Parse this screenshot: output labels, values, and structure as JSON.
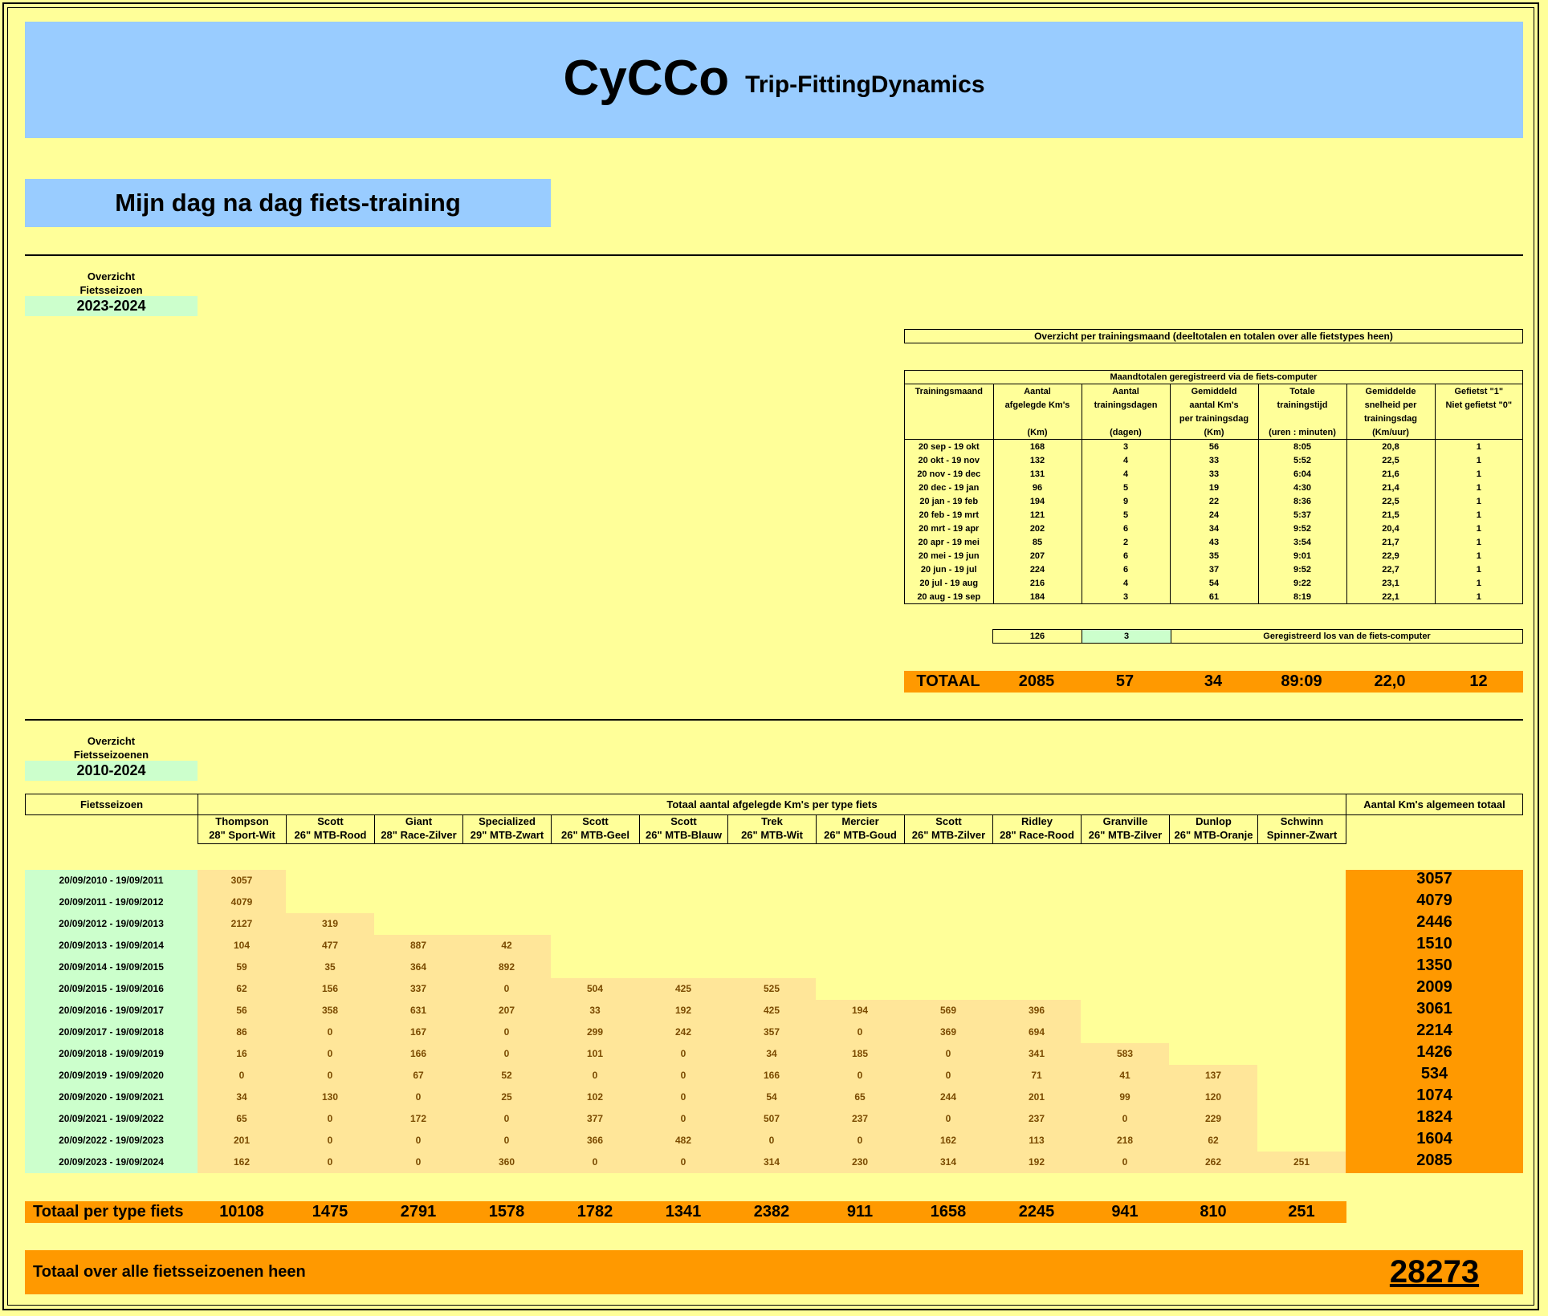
{
  "header": {
    "app": "CyCCo",
    "subtitle": "Trip-FittingDynamics"
  },
  "page_title": "Mijn dag na dag fiets-training",
  "season_overview": {
    "label1": "Overzicht",
    "label2": "Fietsseizoen",
    "value": "2023-2024"
  },
  "monthly": {
    "section_title": "Overzicht per trainingsmaand (deeltotalen en totalen over alle fietstypes heen)",
    "table_title": "Maandtotalen geregistreerd via de fiets-computer",
    "columns": [
      {
        "l1": "Trainingsmaand",
        "l2": "",
        "l3": "",
        "l4": ""
      },
      {
        "l1": "Aantal",
        "l2": "afgelegde  Km's",
        "l3": "",
        "l4": "(Km)"
      },
      {
        "l1": "Aantal",
        "l2": "trainingsdagen",
        "l3": "",
        "l4": "(dagen)"
      },
      {
        "l1": "Gemiddeld",
        "l2": "aantal Km's",
        "l3": "per trainingsdag",
        "l4": "(Km)"
      },
      {
        "l1": "Totale",
        "l2": "trainingstijd",
        "l3": "",
        "l4": "(uren : minuten)"
      },
      {
        "l1": "Gemiddelde",
        "l2": "snelheid per",
        "l3": "trainingsdag",
        "l4": "(Km/uur)"
      },
      {
        "l1": "Gefietst \"1\"",
        "l2": "Niet gefietst \"0\"",
        "l3": "",
        "l4": ""
      }
    ],
    "rows": [
      [
        "20 sep - 19 okt",
        "168",
        "3",
        "56",
        "8:05",
        "20,8",
        "1"
      ],
      [
        "20 okt - 19 nov",
        "132",
        "4",
        "33",
        "5:52",
        "22,5",
        "1"
      ],
      [
        "20 nov - 19 dec",
        "131",
        "4",
        "33",
        "6:04",
        "21,6",
        "1"
      ],
      [
        "20 dec - 19 jan",
        "96",
        "5",
        "19",
        "4:30",
        "21,4",
        "1"
      ],
      [
        "20 jan - 19 feb",
        "194",
        "9",
        "22",
        "8:36",
        "22,5",
        "1"
      ],
      [
        "20 feb - 19 mrt",
        "121",
        "5",
        "24",
        "5:37",
        "21,5",
        "1"
      ],
      [
        "20 mrt - 19 apr",
        "202",
        "6",
        "34",
        "9:52",
        "20,4",
        "1"
      ],
      [
        "20 apr - 19 mei",
        "85",
        "2",
        "43",
        "3:54",
        "21,7",
        "1"
      ],
      [
        "20 mei - 19 jun",
        "207",
        "6",
        "35",
        "9:01",
        "22,9",
        "1"
      ],
      [
        "20 jun - 19 jul",
        "224",
        "6",
        "37",
        "9:52",
        "22,7",
        "1"
      ],
      [
        "20 jul - 19 aug",
        "216",
        "4",
        "54",
        "9:22",
        "23,1",
        "1"
      ],
      [
        "20 aug - 19 sep",
        "184",
        "3",
        "61",
        "8:19",
        "22,1",
        "1"
      ]
    ],
    "separate": {
      "km": "126",
      "days": "3",
      "label": "Geregistreerd los van de fiets-computer"
    },
    "total": {
      "label": "TOTAAL",
      "km": "2085",
      "days": "57",
      "avg": "34",
      "time": "89:09",
      "speed": "22,0",
      "count": "12"
    }
  },
  "seasons_overview": {
    "label1": "Overzicht",
    "label2": "Fietsseizoenen",
    "value": "2010-2024"
  },
  "bikes": {
    "col_season": "Fietsseizoen",
    "col_group": "Totaal aantal afgelegde Km's per type fiets",
    "col_total": "Aantal Km's algemeen totaal",
    "types": [
      {
        "brand": "Thompson",
        "model": "28\" Sport-Wit"
      },
      {
        "brand": "Scott",
        "model": "26\" MTB-Rood"
      },
      {
        "brand": "Giant",
        "model": "28\" Race-Zilver"
      },
      {
        "brand": "Specialized",
        "model": "29\" MTB-Zwart"
      },
      {
        "brand": "Scott",
        "model": "26\" MTB-Geel"
      },
      {
        "brand": "Scott",
        "model": "26\" MTB-Blauw"
      },
      {
        "brand": "Trek",
        "model": "26\" MTB-Wit"
      },
      {
        "brand": "Mercier",
        "model": "26\" MTB-Goud"
      },
      {
        "brand": "Scott",
        "model": "26\" MTB-Zilver"
      },
      {
        "brand": "Ridley",
        "model": "28\" Race-Rood"
      },
      {
        "brand": "Granville",
        "model": "26\" MTB-Zilver"
      },
      {
        "brand": "Dunlop",
        "model": "26\" MTB-Oranje"
      },
      {
        "brand": "Schwinn",
        "model": "Spinner-Zwart"
      }
    ],
    "rows": [
      {
        "season": "20/09/2010 - 19/09/2011",
        "values": [
          "3057"
        ],
        "total": "3057"
      },
      {
        "season": "20/09/2011 - 19/09/2012",
        "values": [
          "4079"
        ],
        "total": "4079"
      },
      {
        "season": "20/09/2012 - 19/09/2013",
        "values": [
          "2127",
          "319"
        ],
        "total": "2446"
      },
      {
        "season": "20/09/2013 - 19/09/2014",
        "values": [
          "104",
          "477",
          "887",
          "42"
        ],
        "total": "1510"
      },
      {
        "season": "20/09/2014 - 19/09/2015",
        "values": [
          "59",
          "35",
          "364",
          "892"
        ],
        "total": "1350"
      },
      {
        "season": "20/09/2015 - 19/09/2016",
        "values": [
          "62",
          "156",
          "337",
          "0",
          "504",
          "425",
          "525"
        ],
        "total": "2009"
      },
      {
        "season": "20/09/2016 - 19/09/2017",
        "values": [
          "56",
          "358",
          "631",
          "207",
          "33",
          "192",
          "425",
          "194",
          "569",
          "396"
        ],
        "total": "3061"
      },
      {
        "season": "20/09/2017 - 19/09/2018",
        "values": [
          "86",
          "0",
          "167",
          "0",
          "299",
          "242",
          "357",
          "0",
          "369",
          "694"
        ],
        "total": "2214"
      },
      {
        "season": "20/09/2018 - 19/09/2019",
        "values": [
          "16",
          "0",
          "166",
          "0",
          "101",
          "0",
          "34",
          "185",
          "0",
          "341",
          "583"
        ],
        "total": "1426"
      },
      {
        "season": "20/09/2019 - 19/09/2020",
        "values": [
          "0",
          "0",
          "67",
          "52",
          "0",
          "0",
          "166",
          "0",
          "0",
          "71",
          "41",
          "137"
        ],
        "total": "534"
      },
      {
        "season": "20/09/2020 - 19/09/2021",
        "values": [
          "34",
          "130",
          "0",
          "25",
          "102",
          "0",
          "54",
          "65",
          "244",
          "201",
          "99",
          "120"
        ],
        "total": "1074"
      },
      {
        "season": "20/09/2021 - 19/09/2022",
        "values": [
          "65",
          "0",
          "172",
          "0",
          "377",
          "0",
          "507",
          "237",
          "0",
          "237",
          "0",
          "229"
        ],
        "total": "1824"
      },
      {
        "season": "20/09/2022 - 19/09/2023",
        "values": [
          "201",
          "0",
          "0",
          "0",
          "366",
          "482",
          "0",
          "0",
          "162",
          "113",
          "218",
          "62"
        ],
        "total": "1604"
      },
      {
        "season": "20/09/2023 - 19/09/2024",
        "values": [
          "162",
          "0",
          "0",
          "360",
          "0",
          "0",
          "314",
          "230",
          "314",
          "192",
          "0",
          "262",
          "251"
        ],
        "total": "2085"
      }
    ],
    "totals_label": "Totaal per type fiets",
    "totals": [
      "10108",
      "1475",
      "2791",
      "1578",
      "1782",
      "1341",
      "2382",
      "911",
      "1658",
      "2245",
      "941",
      "810",
      "251"
    ],
    "grand_label": "Totaal over alle fietsseizoenen heen",
    "grand_total": "28273"
  }
}
